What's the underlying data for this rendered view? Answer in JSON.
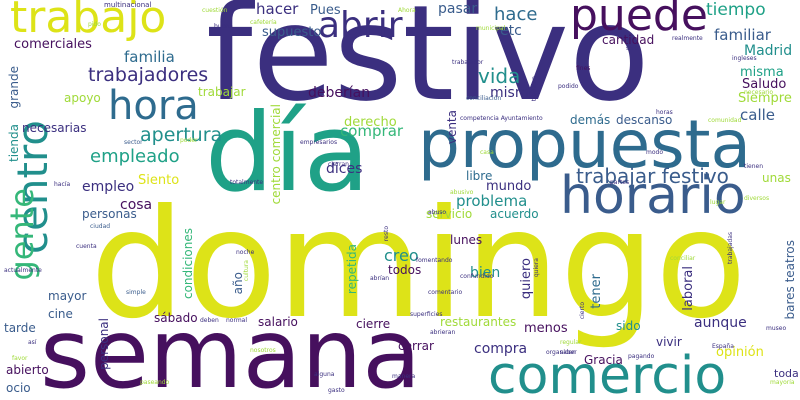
{
  "palette": {
    "indigo": "#3b2f7f",
    "dark_purple": "#46105e",
    "blue": "#3a5c8c",
    "steel": "#2e6b8e",
    "teal": "#218f8c",
    "teal_light": "#1fa187",
    "green": "#35b779",
    "lime": "#a0da39",
    "yellow": "#dde318"
  },
  "words": [
    {
      "text": "domingo",
      "color": "#dde318"
    },
    {
      "text": "festivo",
      "color": "#3b2f7f"
    },
    {
      "text": "semana",
      "color": "#46105e"
    },
    {
      "text": "día",
      "color": "#1fa187"
    },
    {
      "text": "propuesta",
      "color": "#2e6b8e"
    },
    {
      "text": "comercio",
      "color": "#218f8c"
    },
    {
      "text": "horario",
      "color": "#3a5c8c"
    },
    {
      "text": "puede",
      "color": "#46105e"
    },
    {
      "text": "trabajo",
      "color": "#dde318"
    },
    {
      "text": "centro",
      "color": "#218f8c"
    },
    {
      "text": "abrir",
      "color": "#3b2f7f"
    },
    {
      "text": "hora",
      "color": "#2e6b8e"
    },
    {
      "text": "gente",
      "color": "#35b779"
    },
    {
      "text": "trabajar festivo",
      "color": "#3a5c8c"
    },
    {
      "text": "trabajadores",
      "color": "#3b2f7f"
    },
    {
      "text": "apertura",
      "color": "#218f8c"
    },
    {
      "text": "empleado",
      "color": "#1fa187"
    },
    {
      "text": "hace",
      "color": "#2e6b8e"
    },
    {
      "text": "vida",
      "color": "#218f8c"
    },
    {
      "text": "tiempo",
      "color": "#1fa187"
    },
    {
      "text": "hacer",
      "color": "#3b2f7f"
    },
    {
      "text": "Pues",
      "color": "#3a5c8c"
    },
    {
      "text": "pasar",
      "color": "#3a5c8c"
    },
    {
      "text": "comerciales",
      "color": "#46105e"
    },
    {
      "text": "familia",
      "color": "#2e6b8e"
    },
    {
      "text": "familiar",
      "color": "#3a5c8c"
    },
    {
      "text": "Madrid",
      "color": "#218f8c"
    },
    {
      "text": "misma",
      "color": "#1fa187"
    },
    {
      "text": "Saludo",
      "color": "#46105e"
    },
    {
      "text": "Siempre",
      "color": "#a0da39"
    },
    {
      "text": "calle",
      "color": "#3a5c8c"
    },
    {
      "text": "supuesto",
      "color": "#3a5c8c"
    },
    {
      "text": "etc",
      "color": "#3a5c8c"
    },
    {
      "text": "cantidad",
      "color": "#46105e"
    },
    {
      "text": "trabajar",
      "color": "#a0da39"
    },
    {
      "text": "apoyo",
      "color": "#a0da39"
    },
    {
      "text": "deberían",
      "color": "#46105e"
    },
    {
      "text": "mismo",
      "color": "#3b2f7f"
    },
    {
      "text": "necesarias",
      "color": "#3b2f7f"
    },
    {
      "text": "derecho",
      "color": "#a0da39"
    },
    {
      "text": "demás",
      "color": "#2e6b8e"
    },
    {
      "text": "descanso",
      "color": "#3a5c8c"
    },
    {
      "text": "comprar",
      "color": "#35b779"
    },
    {
      "text": "dices",
      "color": "#3b2f7f"
    },
    {
      "text": "Siento",
      "color": "#dde318"
    },
    {
      "text": "cosa",
      "color": "#46105e"
    },
    {
      "text": "empleo",
      "color": "#3b2f7f"
    },
    {
      "text": "personas",
      "color": "#3a5c8c"
    },
    {
      "text": "libre",
      "color": "#2e6b8e"
    },
    {
      "text": "problema",
      "color": "#218f8c"
    },
    {
      "text": "mundo",
      "color": "#3b2f7f"
    },
    {
      "text": "servicio",
      "color": "#a0da39"
    },
    {
      "text": "acuerdo",
      "color": "#218f8c"
    },
    {
      "text": "lunes",
      "color": "#46105e"
    },
    {
      "text": "unas",
      "color": "#a0da39"
    },
    {
      "text": "creo",
      "color": "#218f8c"
    },
    {
      "text": "bien",
      "color": "#218f8c"
    },
    {
      "text": "todos",
      "color": "#46105e"
    },
    {
      "text": "quiero",
      "color": "#3b2f7f"
    },
    {
      "text": "tener",
      "color": "#2e6b8e"
    },
    {
      "text": "laboral",
      "color": "#3b2f7f"
    },
    {
      "text": "aunque",
      "color": "#3b2f7f"
    },
    {
      "text": "año",
      "color": "#3a5c8c"
    },
    {
      "text": "mayor",
      "color": "#3a5c8c"
    },
    {
      "text": "cine",
      "color": "#3a5c8c"
    },
    {
      "text": "tarde",
      "color": "#3a5c8c"
    },
    {
      "text": "sábado",
      "color": "#46105e"
    },
    {
      "text": "salario",
      "color": "#46105e"
    },
    {
      "text": "cierre",
      "color": "#46105e"
    },
    {
      "text": "restaurantes",
      "color": "#a0da39"
    },
    {
      "text": "menos",
      "color": "#46105e"
    },
    {
      "text": "sido",
      "color": "#218f8c"
    },
    {
      "text": "compra",
      "color": "#3b2f7f"
    },
    {
      "text": "cerrar",
      "color": "#46105e"
    },
    {
      "text": "vivir",
      "color": "#3b2f7f"
    },
    {
      "text": "Gracia",
      "color": "#46105e"
    },
    {
      "text": "opinión",
      "color": "#dde318"
    },
    {
      "text": "toda",
      "color": "#3b2f7f"
    },
    {
      "text": "abierto",
      "color": "#46105e"
    },
    {
      "text": "ocio",
      "color": "#3a5c8c"
    },
    {
      "text": "bares teatros",
      "color": "#3a5c8c"
    },
    {
      "text": "venta",
      "color": "#3b2f7f"
    },
    {
      "text": "personal",
      "color": "#3b2f7f"
    },
    {
      "text": "repetida",
      "color": "#35b779"
    },
    {
      "text": "condiciones",
      "color": "#35b779"
    },
    {
      "text": "centro comercial",
      "color": "#a0da39"
    },
    {
      "text": "grande",
      "color": "#3a5c8c"
    },
    {
      "text": "tienda",
      "color": "#218f8c"
    },
    {
      "text": "multinacional",
      "color": "#3b2f7f"
    },
    {
      "text": "cuestión",
      "color": "#a0da39"
    },
    {
      "text": "competencia Ayuntamiento",
      "color": "#3b2f7f"
    },
    {
      "text": "conciliación",
      "color": "#3a5c8c"
    },
    {
      "text": "fines",
      "color": "#46105e"
    },
    {
      "text": "cafetería",
      "color": "#a0da39"
    },
    {
      "text": "sector",
      "color": "#3a5c8c"
    },
    {
      "text": "empresarios",
      "color": "#3b2f7f"
    },
    {
      "text": "cierran",
      "color": "#3b2f7f"
    },
    {
      "text": "cuenta",
      "color": "#3b2f7f"
    },
    {
      "text": "noche",
      "color": "#3b2f7f"
    },
    {
      "text": "simple",
      "color": "#3a5c8c"
    },
    {
      "text": "fomentando",
      "color": "#3b2f7f"
    },
    {
      "text": "abrían",
      "color": "#3b2f7f"
    },
    {
      "text": "comentario",
      "color": "#3b2f7f"
    },
    {
      "text": "superficies",
      "color": "#3b2f7f"
    },
    {
      "text": "abrieran",
      "color": "#3b2f7f"
    },
    {
      "text": "normal",
      "color": "#3b2f7f"
    },
    {
      "text": "nosotros",
      "color": "#a0da39"
    },
    {
      "text": "favor",
      "color": "#a0da39"
    },
    {
      "text": "así",
      "color": "#3b2f7f"
    },
    {
      "text": "saber",
      "color": "#3b2f7f"
    },
    {
      "text": "pagando",
      "color": "#3b2f7f"
    },
    {
      "text": "museo",
      "color": "#3b2f7f"
    },
    {
      "text": "mayoría",
      "color": "#a0da39"
    },
    {
      "text": "lugar",
      "color": "#a0da39"
    },
    {
      "text": "modo",
      "color": "#3b2f7f"
    },
    {
      "text": "casa",
      "color": "#a0da39"
    },
    {
      "text": "cultura",
      "color": "#a0da39"
    },
    {
      "text": "quiera",
      "color": "#3b2f7f"
    },
    {
      "text": "realmente",
      "color": "#3b2f7f"
    },
    {
      "text": "necesario",
      "color": "#a0da39"
    },
    {
      "text": "hacía",
      "color": "#3b2f7f"
    },
    {
      "text": "abusivo",
      "color": "#a0da39"
    },
    {
      "text": "ciudad",
      "color": "#3a5c8c"
    },
    {
      "text": "resto",
      "color": "#3b2f7f"
    },
    {
      "text": "abuso",
      "color": "#3b2f7f"
    },
    {
      "text": "poder",
      "color": "#a0da39"
    },
    {
      "text": "Ahora",
      "color": "#a0da39"
    },
    {
      "text": "pido",
      "color": "#a0da39"
    },
    {
      "text": "trabajan",
      "color": "#3b2f7f"
    },
    {
      "text": "solo",
      "color": "#3b2f7f"
    },
    {
      "text": "municipal",
      "color": "#a0da39"
    },
    {
      "text": "trabajador",
      "color": "#3b2f7f"
    },
    {
      "text": "podido",
      "color": "#3b2f7f"
    },
    {
      "text": "cierto",
      "color": "#3b2f7f"
    },
    {
      "text": "conciliar",
      "color": "#a0da39"
    },
    {
      "text": "trabajadas",
      "color": "#3b2f7f"
    },
    {
      "text": "manera",
      "color": "#3b2f7f"
    },
    {
      "text": "alguna",
      "color": "#3b2f7f"
    },
    {
      "text": "deben",
      "color": "#3b2f7f"
    },
    {
      "text": "confundido",
      "color": "#3b2f7f"
    },
    {
      "text": "regular",
      "color": "#a0da39"
    },
    {
      "text": "comunidad",
      "color": "#a0da39"
    },
    {
      "text": "organicen",
      "color": "#3b2f7f"
    },
    {
      "text": "ingleses",
      "color": "#3b2f7f"
    },
    {
      "text": "tienen",
      "color": "#3b2f7f"
    },
    {
      "text": "diversos",
      "color": "#a0da39"
    },
    {
      "text": "actualmente",
      "color": "#3b2f7f"
    },
    {
      "text": "partes",
      "color": "#3b2f7f"
    },
    {
      "text": "buena",
      "color": "#3b2f7f"
    },
    {
      "text": "horas",
      "color": "#3b2f7f"
    },
    {
      "text": "España",
      "color": "#3b2f7f"
    },
    {
      "text": "totalmente",
      "color": "#3b2f7f"
    },
    {
      "text": "paseando",
      "color": "#a0da39"
    },
    {
      "text": "gasto",
      "color": "#3b2f7f"
    }
  ]
}
